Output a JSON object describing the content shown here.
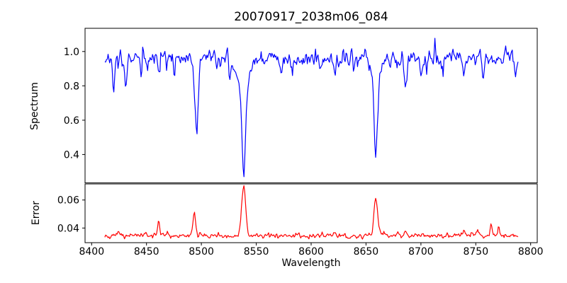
{
  "chart_data": {
    "type": "line",
    "title": "20070917_2038m06_084",
    "xlabel": "Wavelength",
    "xlim": [
      8394,
      8806
    ],
    "x_ticks": [
      {
        "value": 8400,
        "label": "8400"
      },
      {
        "value": 8450,
        "label": "8450"
      },
      {
        "value": 8500,
        "label": "8500"
      },
      {
        "value": 8550,
        "label": "8550"
      },
      {
        "value": 8600,
        "label": "8600"
      },
      {
        "value": 8650,
        "label": "8650"
      },
      {
        "value": 8700,
        "label": "8700"
      },
      {
        "value": 8750,
        "label": "8750"
      },
      {
        "value": 8800,
        "label": "8800"
      }
    ],
    "x_data_range": [
      8412,
      8789
    ],
    "sampling_step": 0.75,
    "noise_seed": 84,
    "grid": false,
    "legend": "none",
    "panels": [
      {
        "name": "spectrum",
        "ylabel": "Spectrum",
        "line_color": "#0000ff",
        "ylim": [
          0.235,
          1.135
        ],
        "y_ticks": [
          {
            "value": 0.4,
            "label": "0.4"
          },
          {
            "value": 0.6,
            "label": "0.6"
          },
          {
            "value": 0.8,
            "label": "0.8"
          },
          {
            "value": 1.0,
            "label": "1.0"
          }
        ],
        "continuum_level": 0.962,
        "noise_sigma": 0.024,
        "absorption_lines": [
          {
            "center": 8495.5,
            "core_depth": 0.4,
            "core_sigma": 1.3,
            "wing_depth": 0.06,
            "wing_sigma": 3.5,
            "min_value": 0.51
          },
          {
            "center": 8538.5,
            "core_depth": 0.52,
            "core_sigma": 1.7,
            "wing_depth": 0.15,
            "wing_sigma": 5.5,
            "min_value": 0.28
          },
          {
            "center": 8659.0,
            "core_depth": 0.45,
            "core_sigma": 1.5,
            "wing_depth": 0.11,
            "wing_sigma": 4.5,
            "min_value": 0.39
          }
        ],
        "minor_dips": [
          {
            "center": 8420,
            "depth": 0.15,
            "sigma": 0.9
          },
          {
            "center": 8431,
            "depth": 0.2,
            "sigma": 1.0
          },
          {
            "center": 8445,
            "depth": 0.09,
            "sigma": 0.8
          },
          {
            "center": 8462,
            "depth": 0.1,
            "sigma": 0.8
          },
          {
            "center": 8475,
            "depth": 0.08,
            "sigma": 0.8
          },
          {
            "center": 8514,
            "depth": 0.08,
            "sigma": 0.8
          },
          {
            "center": 8526,
            "depth": 0.09,
            "sigma": 0.9
          },
          {
            "center": 8573,
            "depth": 0.07,
            "sigma": 0.8
          },
          {
            "center": 8583,
            "depth": 0.07,
            "sigma": 0.8
          },
          {
            "center": 8609,
            "depth": 0.08,
            "sigma": 0.8
          },
          {
            "center": 8622,
            "depth": 0.12,
            "sigma": 0.9
          },
          {
            "center": 8639,
            "depth": 0.07,
            "sigma": 0.8
          },
          {
            "center": 8686,
            "depth": 0.18,
            "sigma": 1.1
          },
          {
            "center": 8700,
            "depth": 0.08,
            "sigma": 0.8
          },
          {
            "center": 8739,
            "depth": 0.12,
            "sigma": 0.9
          },
          {
            "center": 8757,
            "depth": 0.13,
            "sigma": 0.9
          },
          {
            "center": 8786,
            "depth": 0.1,
            "sigma": 0.8
          }
        ],
        "up_spikes": [
          {
            "center": 8524,
            "height": 0.07,
            "sigma": 0.6
          },
          {
            "center": 8649,
            "height": 0.1,
            "sigma": 0.6
          },
          {
            "center": 8713,
            "height": 0.1,
            "sigma": 0.6
          }
        ]
      },
      {
        "name": "error",
        "ylabel": "Error",
        "line_color": "#ff0000",
        "ylim": [
          0.0295,
          0.0715
        ],
        "y_ticks": [
          {
            "value": 0.04,
            "label": "0.04"
          },
          {
            "value": 0.06,
            "label": "0.06"
          }
        ],
        "baseline_level": 0.0345,
        "noise_sigma": 0.0009,
        "peaks": [
          {
            "center": 8424,
            "height": 0.004,
            "sigma": 1.0
          },
          {
            "center": 8461,
            "height": 0.011,
            "sigma": 1.0
          },
          {
            "center": 8493.5,
            "height": 0.017,
            "sigma": 1.1
          },
          {
            "center": 8499,
            "height": 0.004,
            "sigma": 0.8
          },
          {
            "center": 8538.5,
            "height": 0.035,
            "sigma": 1.8
          },
          {
            "center": 8622,
            "height": 0.003,
            "sigma": 1.0
          },
          {
            "center": 8659,
            "height": 0.026,
            "sigma": 1.7
          },
          {
            "center": 8686,
            "height": 0.004,
            "sigma": 1.0
          },
          {
            "center": 8739,
            "height": 0.004,
            "sigma": 1.0
          },
          {
            "center": 8752,
            "height": 0.004,
            "sigma": 0.9
          },
          {
            "center": 8764,
            "height": 0.0075,
            "sigma": 0.9
          },
          {
            "center": 8771,
            "height": 0.005,
            "sigma": 0.8
          }
        ]
      }
    ]
  }
}
